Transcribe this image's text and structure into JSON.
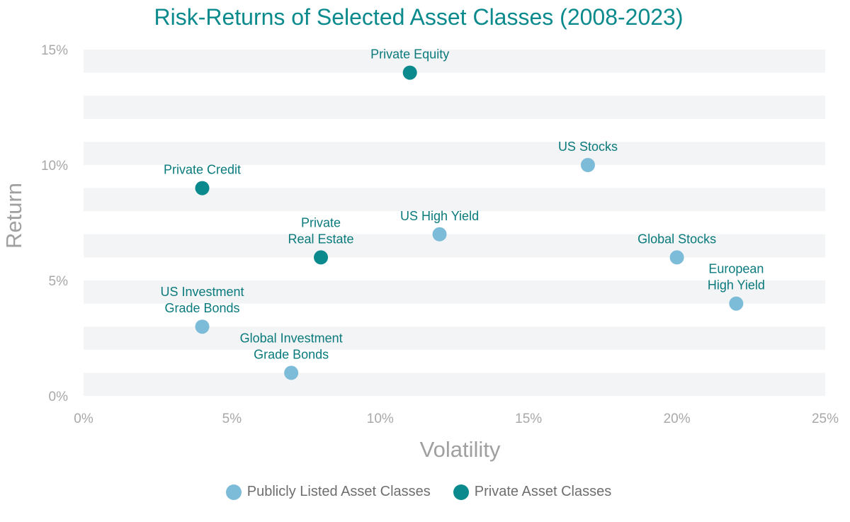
{
  "colors": {
    "public": "#7dbcd9",
    "private": "#0a8a8c",
    "band": "#f3f4f5",
    "title": "#0a8a8c",
    "label": "#0a7a7c",
    "axis_text": "#a8a8a8"
  },
  "chart_data": {
    "type": "scatter",
    "title": "Risk-Returns of Selected Asset Classes (2008-2023)",
    "xlabel": "Volatility",
    "ylabel": "Return",
    "xlim": [
      0,
      25
    ],
    "ylim": [
      0,
      15
    ],
    "xticks": [
      "0%",
      "5%",
      "10%",
      "15%",
      "20%",
      "25%"
    ],
    "yticks": [
      "0%",
      "5%",
      "10%",
      "15%"
    ],
    "grid": "horizontal bands",
    "legend_position": "bottom",
    "series": [
      {
        "name": "Publicly Listed Asset Classes",
        "color": "#7dbcd9",
        "points": [
          {
            "label": [
              "US Stocks"
            ],
            "x": 17,
            "y": 10
          },
          {
            "label": [
              "US High Yield"
            ],
            "x": 12,
            "y": 7
          },
          {
            "label": [
              "Global Stocks"
            ],
            "x": 20,
            "y": 6
          },
          {
            "label": [
              "European",
              "High Yield"
            ],
            "x": 22,
            "y": 4
          },
          {
            "label": [
              "US Investment",
              "Grade Bonds"
            ],
            "x": 4,
            "y": 3
          },
          {
            "label": [
              "Global Investment",
              "Grade Bonds"
            ],
            "x": 7,
            "y": 1
          }
        ]
      },
      {
        "name": "Private Asset Classes",
        "color": "#0a8a8c",
        "points": [
          {
            "label": [
              "Private Equity"
            ],
            "x": 11,
            "y": 14
          },
          {
            "label": [
              "Private Credit"
            ],
            "x": 4,
            "y": 9
          },
          {
            "label": [
              "Private",
              "Real Estate"
            ],
            "x": 8,
            "y": 6
          }
        ]
      }
    ]
  }
}
